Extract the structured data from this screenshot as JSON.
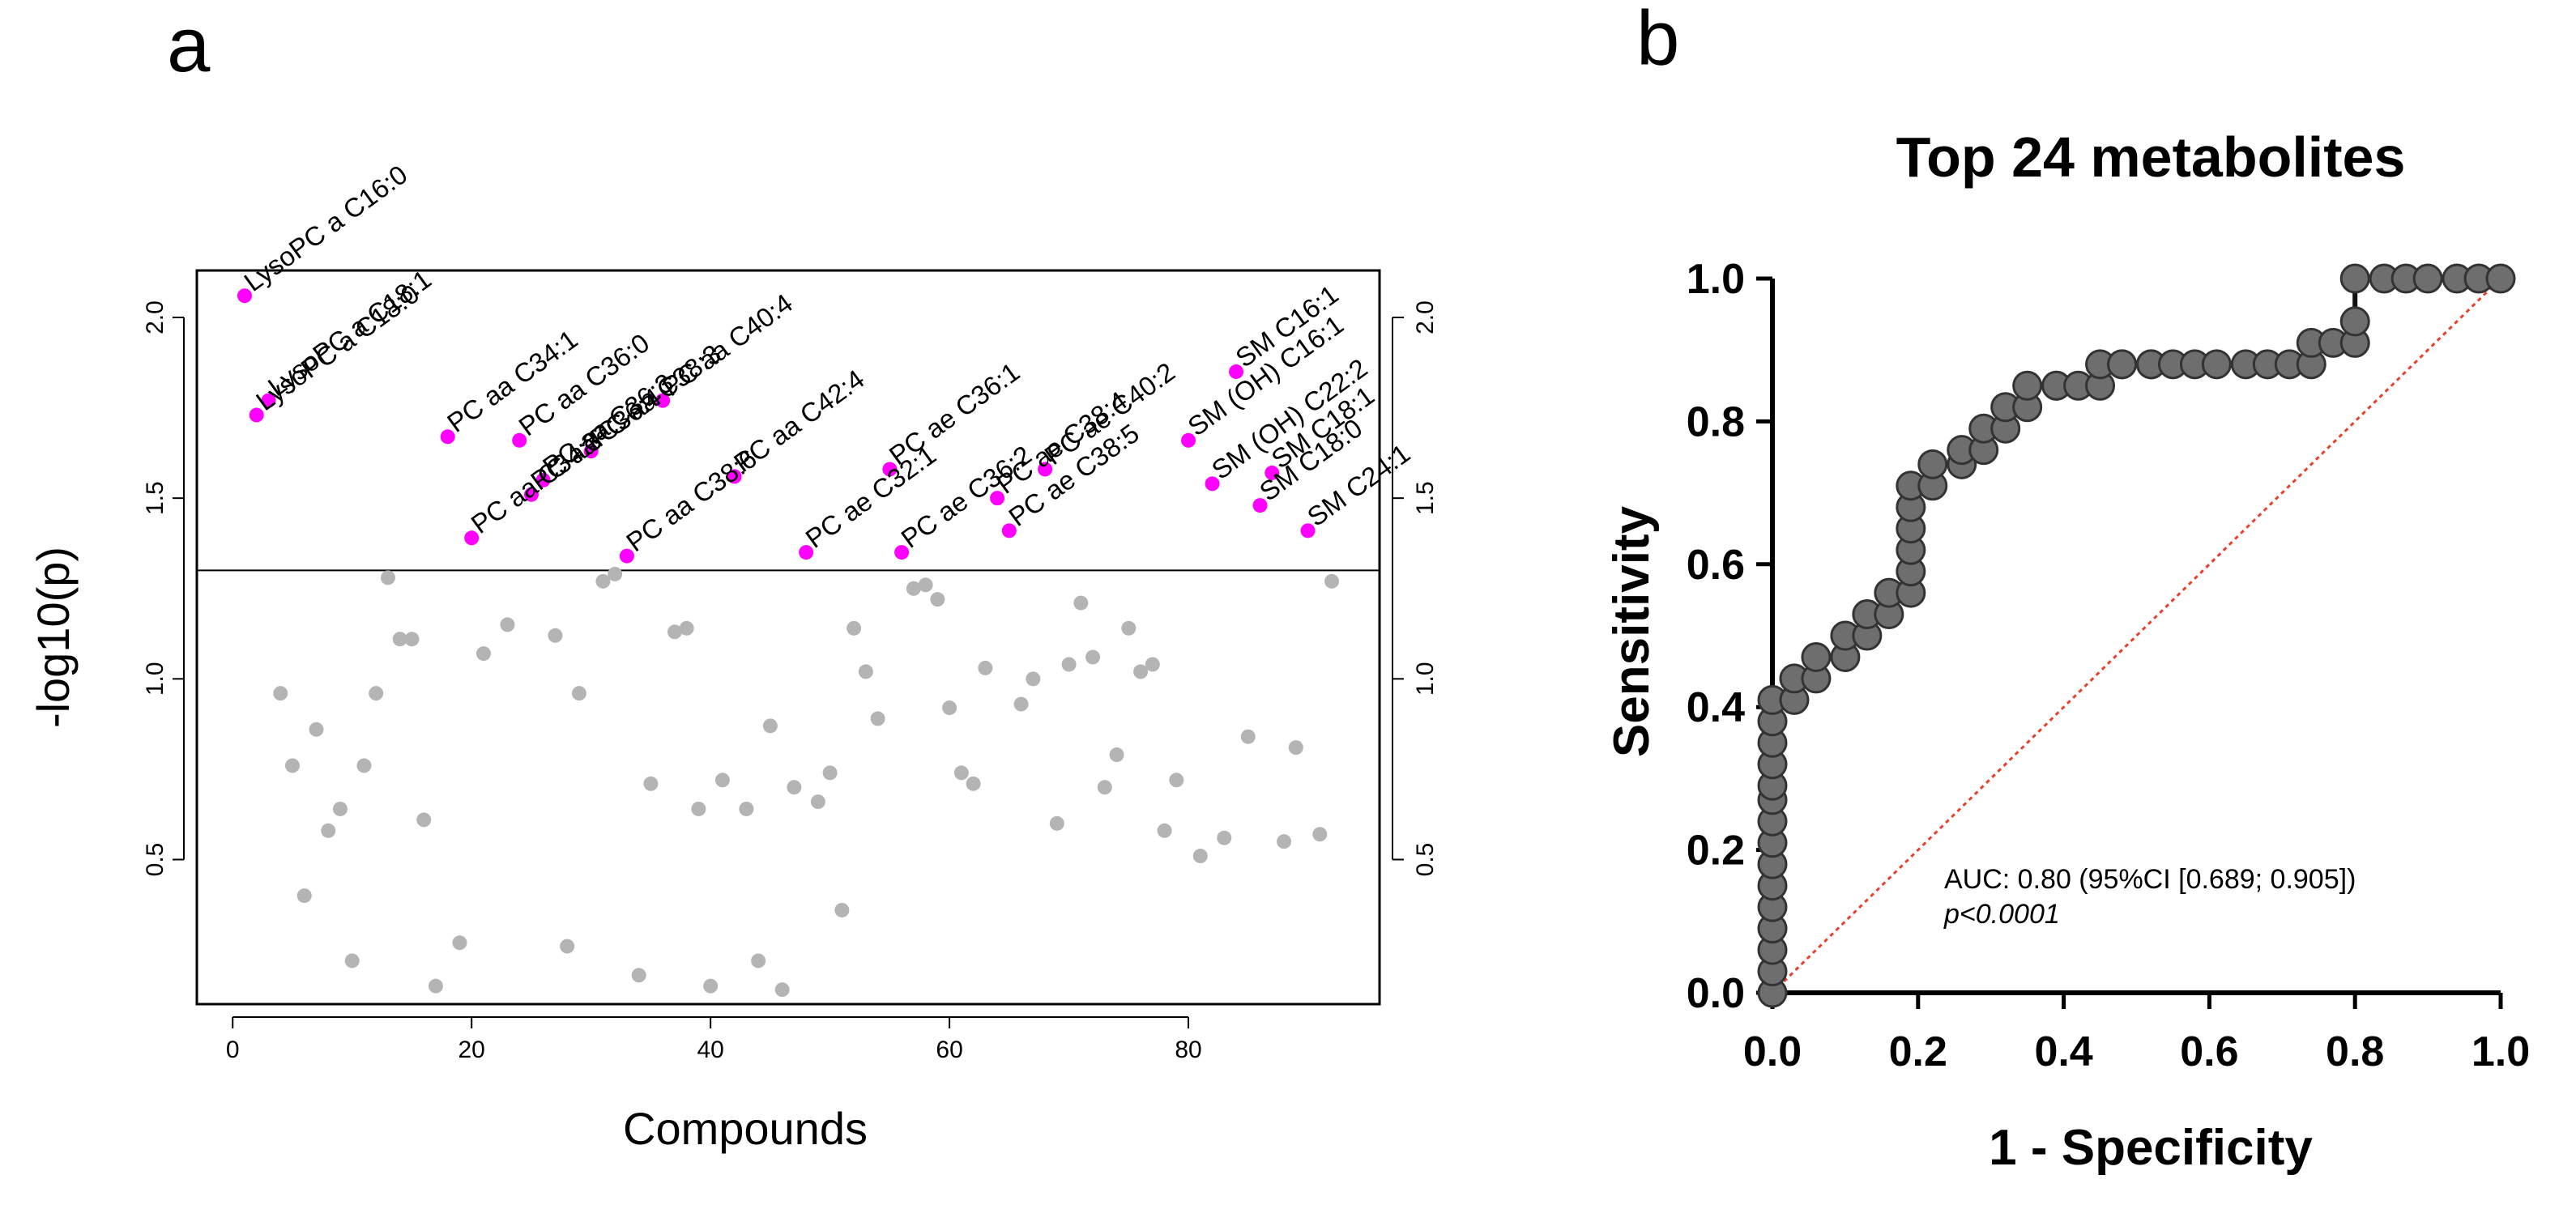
{
  "chart_data": [
    {
      "panel_label": "a",
      "type": "scatter",
      "xlabel": "Compounds",
      "ylabel": "-log10(p)",
      "xlim": [
        -3,
        96
      ],
      "ylim": [
        0.1,
        2.13
      ],
      "x_ticks": [
        0,
        20,
        40,
        60,
        80
      ],
      "x_tick_labels": [
        "0",
        "20",
        "40",
        "60",
        "80"
      ],
      "y_ticks": [
        0.5,
        1.0,
        1.5,
        2.0
      ],
      "y_tick_labels": [
        "0.5",
        "1.0",
        "1.5",
        "2.0"
      ],
      "threshold": 1.3,
      "colors": {
        "significant": "#ff00ff",
        "nonsignificant": "#b4b4b4",
        "frame": "#000000"
      },
      "significant": [
        {
          "x": 1,
          "y": 2.06,
          "label": "LysoPC a C16:0"
        },
        {
          "x": 3,
          "y": 1.77,
          "label": "LysoPC a C18:1"
        },
        {
          "x": 2,
          "y": 1.73,
          "label": "LysoPC a C18:0"
        },
        {
          "x": 18,
          "y": 1.67,
          "label": "PC aa C34:1"
        },
        {
          "x": 24,
          "y": 1.66,
          "label": "PC aa C36:0"
        },
        {
          "x": 26,
          "y": 1.55,
          "label": "PC aa C36:3"
        },
        {
          "x": 30,
          "y": 1.63,
          "label": "PC aa C38:3"
        },
        {
          "x": 36,
          "y": 1.77,
          "label": "PC aa C40:4"
        },
        {
          "x": 33,
          "y": 1.34,
          "label": "PC aa C38:6"
        },
        {
          "x": 42,
          "y": 1.56,
          "label": "PC aa C42:4"
        },
        {
          "x": 20,
          "y": 1.39,
          "label": "PC aa C34:3"
        },
        {
          "x": 25,
          "y": 1.51,
          "label": "PC aa C36:4"
        },
        {
          "x": 48,
          "y": 1.35,
          "label": "PC ae C32:1"
        },
        {
          "x": 55,
          "y": 1.58,
          "label": "PC ae C36:1"
        },
        {
          "x": 56,
          "y": 1.35,
          "label": "PC ae C36:2"
        },
        {
          "x": 64,
          "y": 1.5,
          "label": "PC ae C38:4"
        },
        {
          "x": 68,
          "y": 1.58,
          "label": "PC ae C40:2"
        },
        {
          "x": 65,
          "y": 1.41,
          "label": "PC ae C38:5"
        },
        {
          "x": 84,
          "y": 1.85,
          "label": "SM C16:1"
        },
        {
          "x": 80,
          "y": 1.66,
          "label": "SM (OH) C16:1"
        },
        {
          "x": 82,
          "y": 1.54,
          "label": "SM (OH) C22:2"
        },
        {
          "x": 87,
          "y": 1.57,
          "label": "SM C18:1"
        },
        {
          "x": 86,
          "y": 1.48,
          "label": "SM C18:0"
        },
        {
          "x": 90,
          "y": 1.41,
          "label": "SM C24:1"
        }
      ],
      "nonsignificant": [
        [
          4,
          0.96
        ],
        [
          5,
          0.76
        ],
        [
          6,
          0.4
        ],
        [
          7,
          0.86
        ],
        [
          8,
          0.58
        ],
        [
          9,
          0.64
        ],
        [
          10,
          0.22
        ],
        [
          11,
          0.76
        ],
        [
          12,
          0.96
        ],
        [
          13,
          1.28
        ],
        [
          14,
          1.11
        ],
        [
          15,
          1.11
        ],
        [
          16,
          0.61
        ],
        [
          17,
          0.15
        ],
        [
          19,
          0.27
        ],
        [
          21,
          1.07
        ],
        [
          23,
          1.15
        ],
        [
          28,
          0.26
        ],
        [
          27,
          1.12
        ],
        [
          29,
          0.96
        ],
        [
          31,
          1.27
        ],
        [
          32,
          1.29
        ],
        [
          34,
          0.18
        ],
        [
          35,
          0.71
        ],
        [
          37,
          1.13
        ],
        [
          38,
          1.14
        ],
        [
          39,
          0.64
        ],
        [
          40,
          0.15
        ],
        [
          41,
          0.72
        ],
        [
          43,
          0.64
        ],
        [
          44,
          0.22
        ],
        [
          45,
          0.87
        ],
        [
          46,
          0.14
        ],
        [
          47,
          0.7
        ],
        [
          49,
          0.66
        ],
        [
          50,
          0.74
        ],
        [
          51,
          0.36
        ],
        [
          52,
          1.14
        ],
        [
          53,
          1.02
        ],
        [
          54,
          0.89
        ],
        [
          57,
          1.25
        ],
        [
          58,
          1.26
        ],
        [
          59,
          1.22
        ],
        [
          60,
          0.92
        ],
        [
          61,
          0.74
        ],
        [
          62,
          0.71
        ],
        [
          63,
          1.03
        ],
        [
          66,
          0.93
        ],
        [
          67,
          1.0
        ],
        [
          69,
          0.6
        ],
        [
          70,
          1.04
        ],
        [
          71,
          1.21
        ],
        [
          72,
          1.06
        ],
        [
          73,
          0.7
        ],
        [
          74,
          0.79
        ],
        [
          75,
          1.14
        ],
        [
          76,
          1.02
        ],
        [
          77,
          1.04
        ],
        [
          78,
          0.58
        ],
        [
          79,
          0.72
        ],
        [
          81,
          0.51
        ],
        [
          83,
          0.56
        ],
        [
          85,
          0.84
        ],
        [
          88,
          0.55
        ],
        [
          89,
          0.81
        ],
        [
          91,
          0.57
        ],
        [
          92,
          1.27
        ]
      ]
    },
    {
      "panel_label": "b",
      "type": "line",
      "title": "Top 24 metabolites",
      "xlabel": "1 - Specificity",
      "ylabel": "Sensitivity",
      "xlim": [
        0,
        1
      ],
      "ylim": [
        0,
        1
      ],
      "x_ticks": [
        0,
        0.2,
        0.4,
        0.6,
        0.8,
        1.0
      ],
      "x_tick_labels": [
        "0.0",
        "0.2",
        "0.4",
        "0.6",
        "0.8",
        "1.0"
      ],
      "y_ticks": [
        0,
        0.2,
        0.4,
        0.6,
        0.8,
        1.0
      ],
      "y_tick_labels": [
        "0.0",
        "0.2",
        "0.4",
        "0.6",
        "0.8",
        "1.0"
      ],
      "colors": {
        "curve": "#111111",
        "points": "#6e6e6e",
        "diagonal": "#e8402a"
      },
      "auc_text": "AUC: 0.80 (95%CI [0.689; 0.905])",
      "p_text": "p<0.0001",
      "roc": {
        "x": [
          0,
          0,
          0,
          0,
          0,
          0,
          0,
          0,
          0,
          0,
          0,
          0,
          0,
          0,
          0,
          0.03,
          0.03,
          0.06,
          0.06,
          0.1,
          0.1,
          0.13,
          0.13,
          0.16,
          0.16,
          0.19,
          0.19,
          0.19,
          0.19,
          0.19,
          0.19,
          0.22,
          0.22,
          0.26,
          0.26,
          0.29,
          0.29,
          0.32,
          0.32,
          0.35,
          0.35,
          0.39,
          0.39,
          0.42,
          0.45,
          0.45,
          0.48,
          0.48,
          0.52,
          0.52,
          0.55,
          0.58,
          0.61,
          0.65,
          0.68,
          0.71,
          0.74,
          0.74,
          0.77,
          0.8,
          0.8,
          0.8,
          0.84,
          0.87,
          0.9,
          0.94,
          0.97,
          1.0
        ],
        "y": [
          0,
          0.03,
          0.06,
          0.09,
          0.12,
          0.15,
          0.18,
          0.21,
          0.24,
          0.27,
          0.29,
          0.32,
          0.35,
          0.38,
          0.41,
          0.41,
          0.44,
          0.44,
          0.47,
          0.47,
          0.5,
          0.5,
          0.53,
          0.53,
          0.56,
          0.56,
          0.59,
          0.62,
          0.65,
          0.68,
          0.71,
          0.71,
          0.74,
          0.74,
          0.76,
          0.76,
          0.79,
          0.79,
          0.82,
          0.82,
          0.85,
          0.85,
          0.85,
          0.85,
          0.85,
          0.88,
          0.88,
          0.88,
          0.88,
          0.88,
          0.88,
          0.88,
          0.88,
          0.88,
          0.88,
          0.88,
          0.88,
          0.91,
          0.91,
          0.91,
          0.94,
          1.0,
          1.0,
          1.0,
          1.0,
          1.0,
          1.0,
          1.0
        ]
      }
    }
  ]
}
